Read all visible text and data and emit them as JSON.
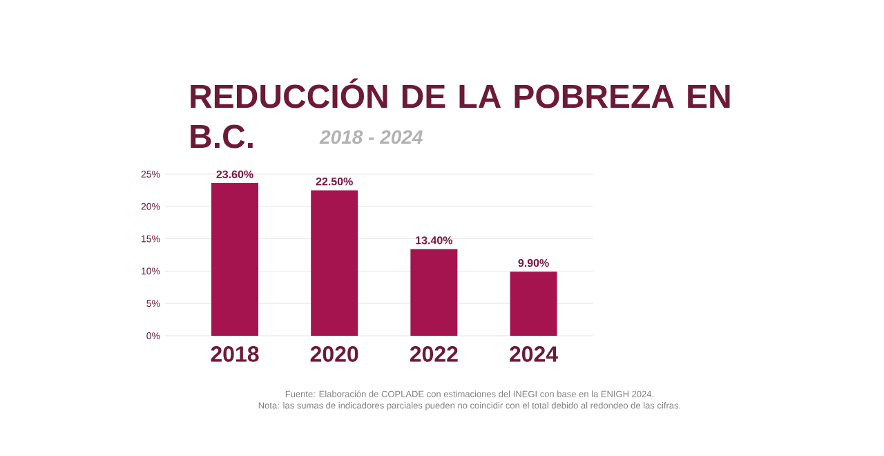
{
  "chart_data": {
    "type": "bar",
    "title": "REDUCCIÓN DE LA POBREZA EN B.C.",
    "subtitle": "2018 - 2024",
    "categories": [
      "2018",
      "2020",
      "2022",
      "2024"
    ],
    "values": [
      23.6,
      22.5,
      13.4,
      9.9
    ],
    "value_labels": [
      "23.60%",
      "22.50%",
      "13.40%",
      "9.90%"
    ],
    "color": "#a5144f",
    "ylim": [
      0,
      25
    ],
    "yticks": [
      {
        "value": 0,
        "label": "0%"
      },
      {
        "value": 5,
        "label": "5%"
      },
      {
        "value": 10,
        "label": "10%"
      },
      {
        "value": 15,
        "label": "15%"
      },
      {
        "value": 20,
        "label": "20%"
      },
      {
        "value": 25,
        "label": "25%"
      }
    ],
    "grid": "y",
    "annotations": [
      "Fuente: Elaboración de COPLADE con estimaciones del INEGI con base en la ENIGH 2024.",
      "Nota: las sumas de indicadores parciales pueden no coincidir con el total debido al redondeo de las cifras."
    ]
  }
}
